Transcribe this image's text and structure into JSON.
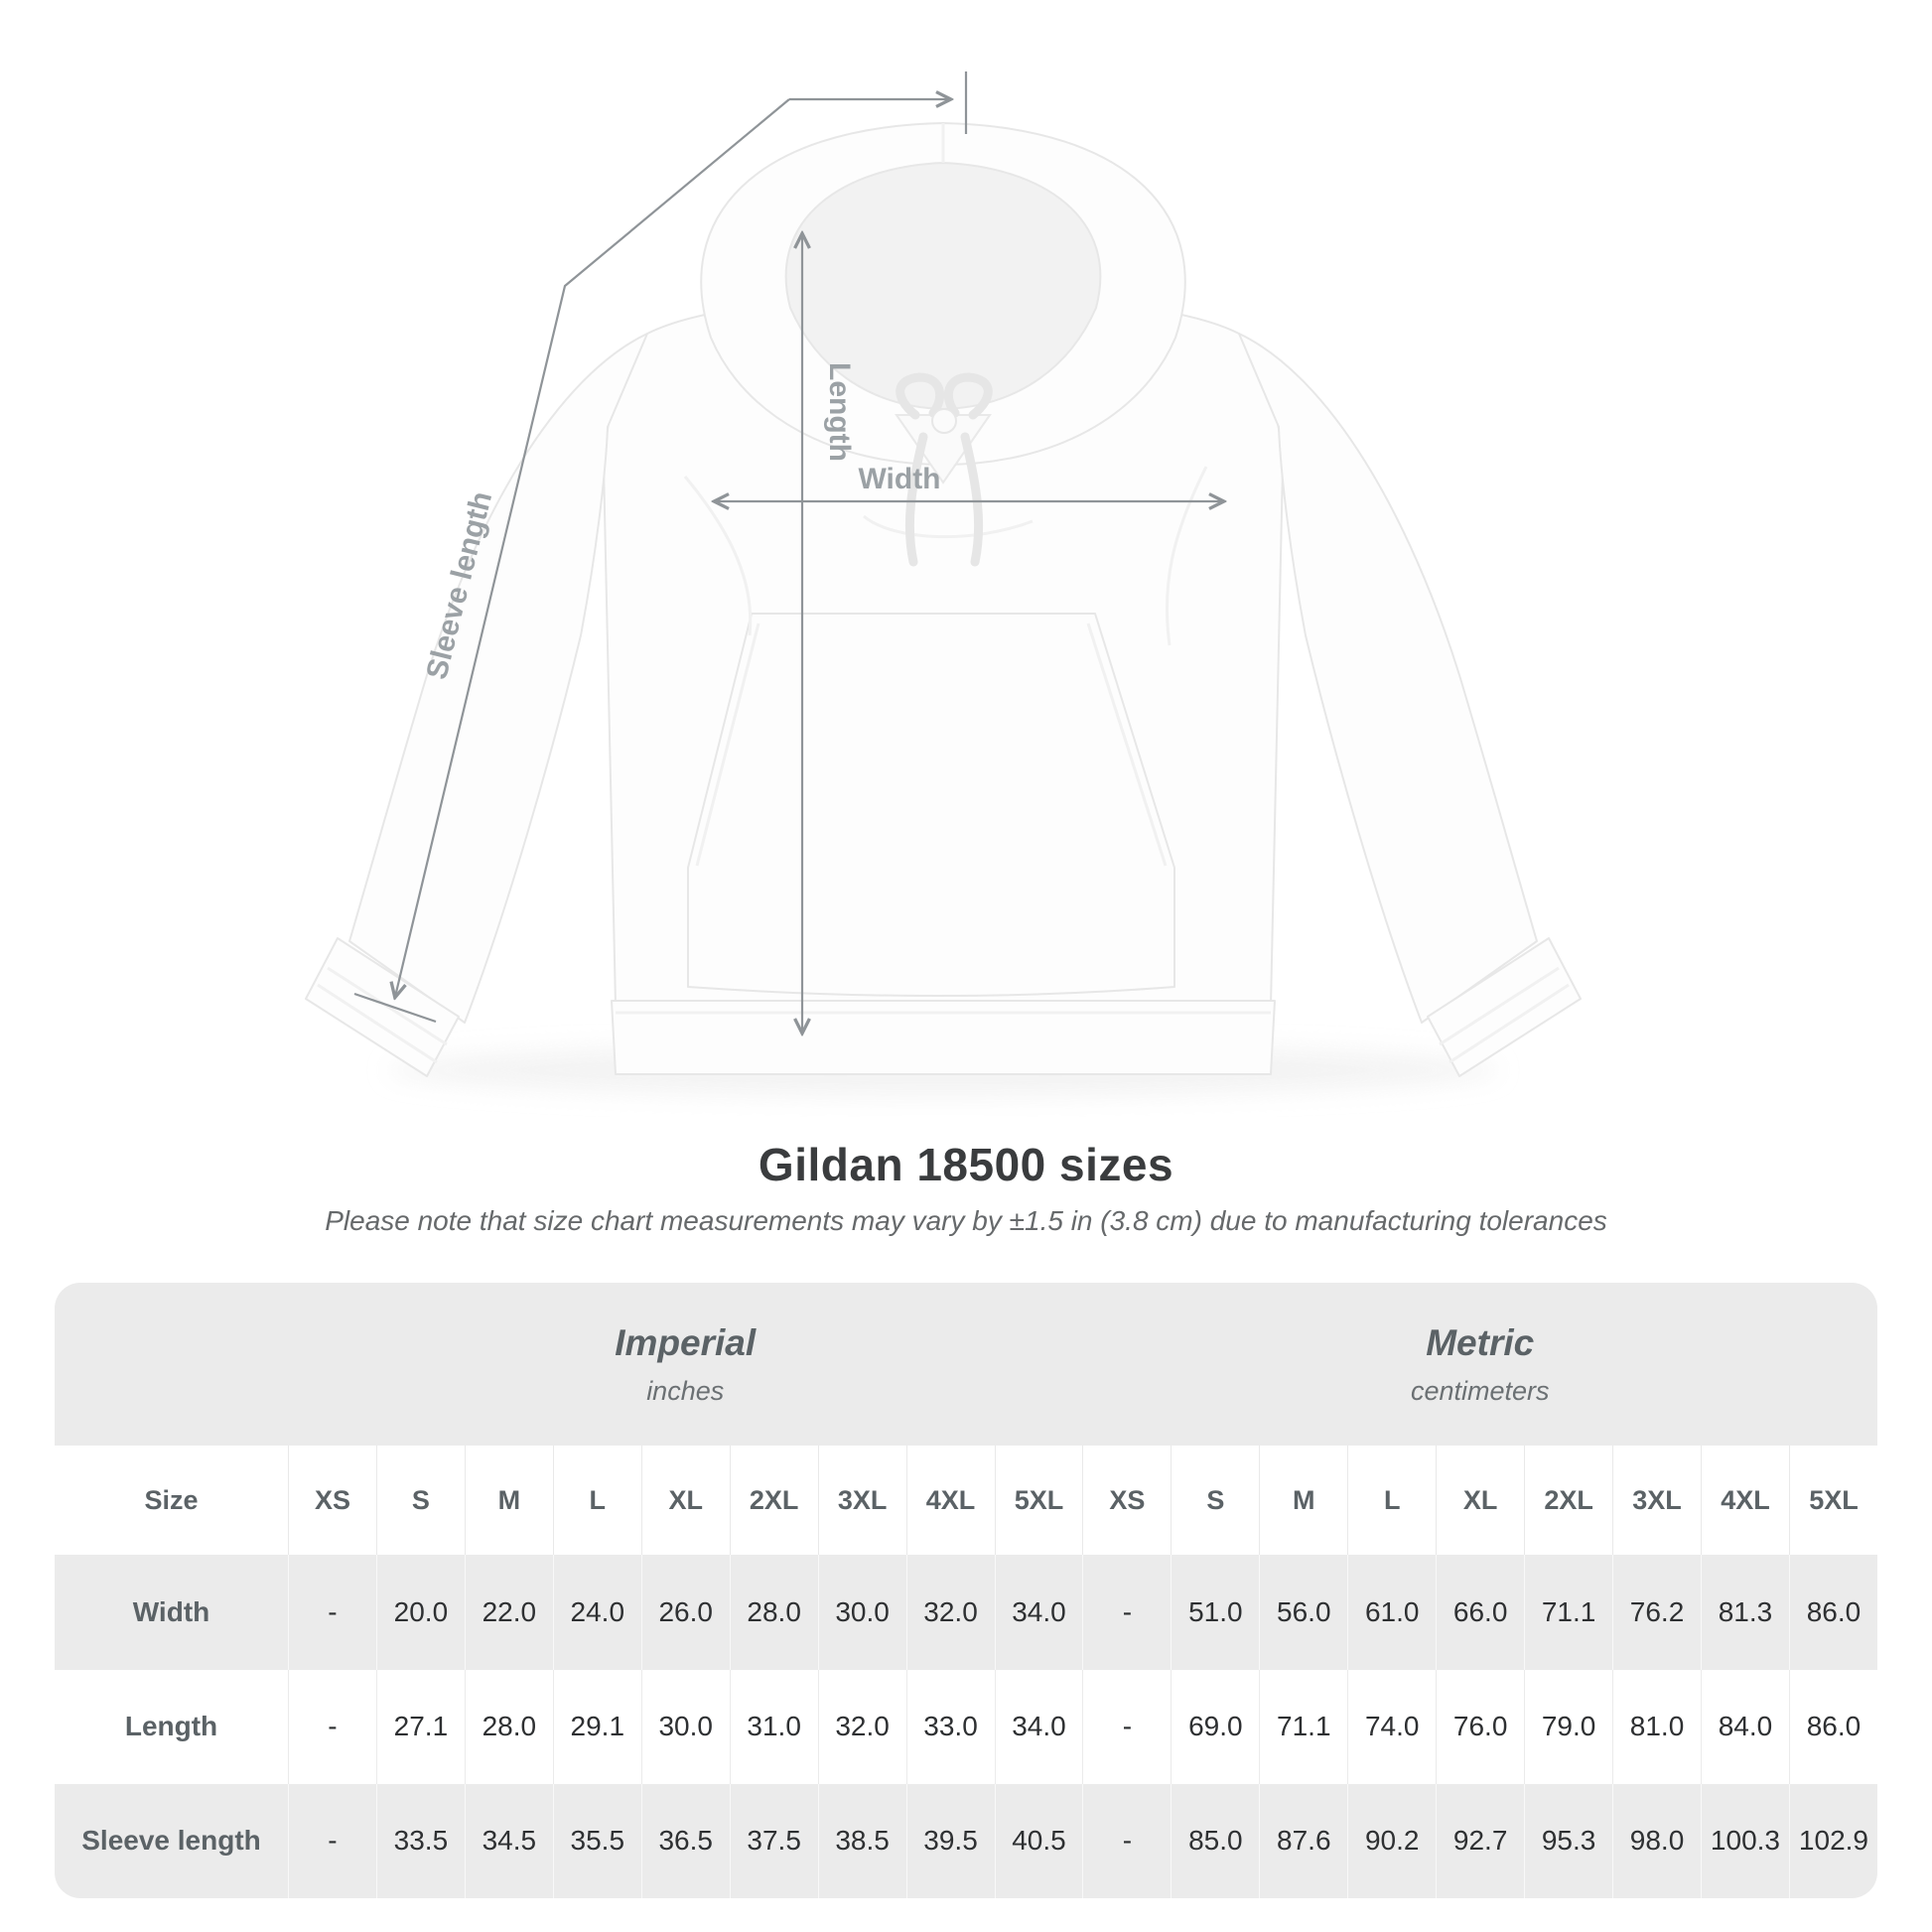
{
  "figure": {
    "measure_labels": {
      "length": "Length",
      "width": "Width",
      "sleeve_length": "Sleeve length"
    },
    "colors": {
      "line": "#8f9498",
      "label": "#9ba1a5"
    }
  },
  "heading": {
    "title": "Gildan 18500 sizes",
    "note": "Please note that size chart measurements may vary by ±1.5 in (3.8 cm) due to manufacturing tolerances"
  },
  "size_table": {
    "groups": [
      {
        "label": "Imperial",
        "sublabel": "inches"
      },
      {
        "label": "Metric",
        "sublabel": "centimeters"
      }
    ],
    "size_column_header": "Size",
    "sizes": [
      "XS",
      "S",
      "M",
      "L",
      "XL",
      "2XL",
      "3XL",
      "4XL",
      "5XL"
    ],
    "rows": [
      {
        "label": "Width",
        "imperial": [
          "-",
          "20.0",
          "22.0",
          "24.0",
          "26.0",
          "28.0",
          "30.0",
          "32.0",
          "34.0"
        ],
        "metric": [
          "-",
          "51.0",
          "56.0",
          "61.0",
          "66.0",
          "71.1",
          "76.2",
          "81.3",
          "86.0"
        ]
      },
      {
        "label": "Length",
        "imperial": [
          "-",
          "27.1",
          "28.0",
          "29.1",
          "30.0",
          "31.0",
          "32.0",
          "33.0",
          "34.0"
        ],
        "metric": [
          "-",
          "69.0",
          "71.1",
          "74.0",
          "76.0",
          "79.0",
          "81.0",
          "84.0",
          "86.0"
        ]
      },
      {
        "label": "Sleeve length",
        "imperial": [
          "-",
          "33.5",
          "34.5",
          "35.5",
          "36.5",
          "37.5",
          "38.5",
          "39.5",
          "40.5"
        ],
        "metric": [
          "-",
          "85.0",
          "87.6",
          "90.2",
          "92.7",
          "95.3",
          "98.0",
          "100.3",
          "102.9"
        ]
      }
    ],
    "colors": {
      "band": "#ebebeb",
      "alt_row": "#ebebeb",
      "header_text": "#5b6266",
      "value_text": "#2e3032"
    }
  },
  "chart_data": {
    "type": "table",
    "title": "Gildan 18500 sizes",
    "note": "Please note that size chart measurements may vary by ±1.5 in (3.8 cm) due to manufacturing tolerances",
    "units": [
      "inches",
      "centimeters"
    ],
    "sizes": [
      "XS",
      "S",
      "M",
      "L",
      "XL",
      "2XL",
      "3XL",
      "4XL",
      "5XL"
    ],
    "rows": [
      {
        "measurement": "Width",
        "inches": [
          null,
          20.0,
          22.0,
          24.0,
          26.0,
          28.0,
          30.0,
          32.0,
          34.0
        ],
        "centimeters": [
          null,
          51.0,
          56.0,
          61.0,
          66.0,
          71.1,
          76.2,
          81.3,
          86.0
        ]
      },
      {
        "measurement": "Length",
        "inches": [
          null,
          27.1,
          28.0,
          29.1,
          30.0,
          31.0,
          32.0,
          33.0,
          34.0
        ],
        "centimeters": [
          null,
          69.0,
          71.1,
          74.0,
          76.0,
          79.0,
          81.0,
          84.0,
          86.0
        ]
      },
      {
        "measurement": "Sleeve length",
        "inches": [
          null,
          33.5,
          34.5,
          35.5,
          36.5,
          37.5,
          38.5,
          39.5,
          40.5
        ],
        "centimeters": [
          null,
          85.0,
          87.6,
          90.2,
          92.7,
          95.3,
          98.0,
          100.3,
          102.9
        ]
      }
    ]
  }
}
